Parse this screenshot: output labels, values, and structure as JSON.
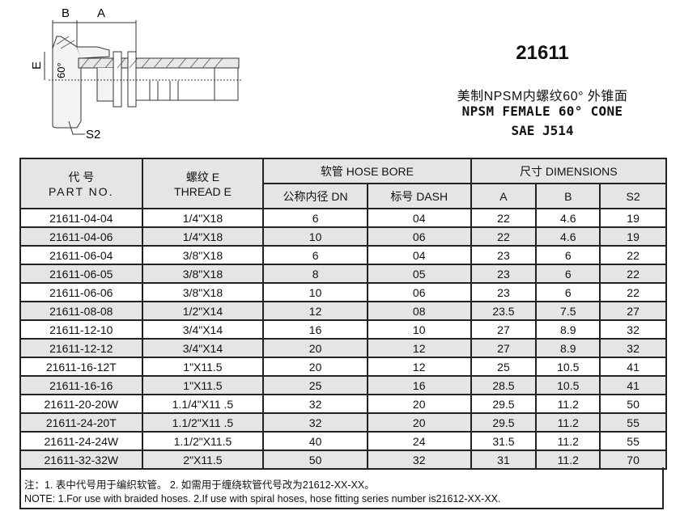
{
  "drawing": {
    "label_b": "B",
    "label_a": "A",
    "label_e": "E",
    "label_angle": "60°",
    "label_s2": "S2"
  },
  "title": {
    "part_series": "21611",
    "name_cn": "美制NPSM内螺纹60° 外锥面",
    "name_en": "NPSM FEMALE 60° CONE",
    "standard": "SAE  J514"
  },
  "table": {
    "headers": {
      "part_cn": "代 号",
      "part_en": "PART NO.",
      "thread_cn": "螺纹 E",
      "thread_en": "THREAD E",
      "hose_bore": "软管 HOSE BORE",
      "dn": "公称内径 DN",
      "dash": "标号 DASH",
      "dimensions": "尺寸 DIMENSIONS",
      "a": "A",
      "b": "B",
      "s2": "S2"
    },
    "rows": [
      [
        "21611-04-04",
        "1/4\"X18",
        "6",
        "04",
        "22",
        "4.6",
        "19"
      ],
      [
        "21611-04-06",
        "1/4\"X18",
        "10",
        "06",
        "22",
        "4.6",
        "19"
      ],
      [
        "21611-06-04",
        "3/8\"X18",
        "6",
        "04",
        "23",
        "6",
        "22"
      ],
      [
        "21611-06-05",
        "3/8\"X18",
        "8",
        "05",
        "23",
        "6",
        "22"
      ],
      [
        "21611-06-06",
        "3/8\"X18",
        "10",
        "06",
        "23",
        "6",
        "22"
      ],
      [
        "21611-08-08",
        "1/2\"X14",
        "12",
        "08",
        "23.5",
        "7.5",
        "27"
      ],
      [
        "21611-12-10",
        "3/4\"X14",
        "16",
        "10",
        "27",
        "8.9",
        "32"
      ],
      [
        "21611-12-12",
        "3/4\"X14",
        "20",
        "12",
        "27",
        "8.9",
        "32"
      ],
      [
        "21611-16-12T",
        "1\"X11.5",
        "20",
        "12",
        "25",
        "10.5",
        "41"
      ],
      [
        "21611-16-16",
        "1\"X11.5",
        "25",
        "16",
        "28.5",
        "10.5",
        "41"
      ],
      [
        "21611-20-20W",
        "1.1/4\"X11 .5",
        "32",
        "20",
        "29.5",
        "11.2",
        "50"
      ],
      [
        "21611-24-20T",
        "1.1/2\"X11 .5",
        "32",
        "20",
        "29.5",
        "11.2",
        "55"
      ],
      [
        "21611-24-24W",
        "1.1/2\"X11.5",
        "40",
        "24",
        "31.5",
        "11.2",
        "55"
      ],
      [
        "21611-32-32W",
        "2\"X11.5",
        "50",
        "32",
        "31",
        "11.2",
        "70"
      ]
    ]
  },
  "notes": {
    "cn": "注：1. 表中代号用于编织软管。 2. 如需用于缠绕软管代号改为21612-XX-XX。",
    "en": "NOTE:  1.For use with braided hoses.    2.If use with spiral hoses, hose fitting series number is21612-XX-XX."
  }
}
